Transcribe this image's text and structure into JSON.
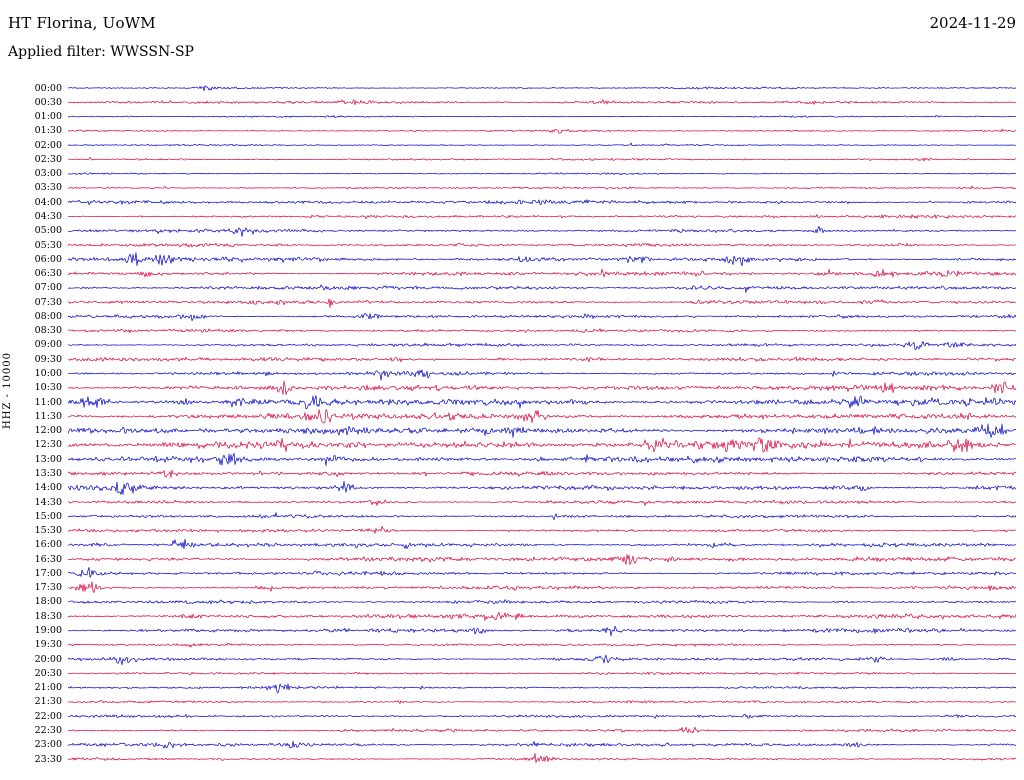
{
  "header": {
    "station": "HT Florina, UoWM",
    "date": "2024-11-29",
    "filter_label": "Applied filter: WWSSN-SP"
  },
  "axis": {
    "left_label": "HHZ - 10000"
  },
  "colors": {
    "blue": "#0000c8",
    "red": "#d8003c",
    "background": "#ffffff",
    "text": "#000000"
  },
  "chart_data": {
    "type": "line",
    "subtype": "helicorder-seismogram",
    "title": "HT Florina, UoWM",
    "date": "2024-11-29",
    "filter": "WWSSN-SP",
    "channel": "HHZ",
    "gain_scale": 10000,
    "minutes_per_row": 30,
    "row_color_rule": "hour lines blue, half-hour lines red, alternating",
    "rows": [
      {
        "t": "00:00",
        "color": "blue",
        "amp": 0.45,
        "bursts": [
          [
            0.145,
            3.2
          ]
        ]
      },
      {
        "t": "00:30",
        "color": "red",
        "amp": 0.7,
        "bursts": [
          [
            0.3,
            1.6
          ],
          [
            0.56,
            1.2
          ]
        ]
      },
      {
        "t": "01:00",
        "color": "blue",
        "amp": 0.4,
        "bursts": []
      },
      {
        "t": "01:30",
        "color": "red",
        "amp": 0.45,
        "bursts": [
          [
            0.515,
            2.2
          ]
        ]
      },
      {
        "t": "02:00",
        "color": "blue",
        "amp": 0.4,
        "bursts": []
      },
      {
        "t": "02:30",
        "color": "red",
        "amp": 0.5,
        "bursts": [
          [
            0.21,
            1.4
          ],
          [
            0.9,
            1.8
          ]
        ]
      },
      {
        "t": "03:00",
        "color": "blue",
        "amp": 0.4,
        "bursts": []
      },
      {
        "t": "03:30",
        "color": "red",
        "amp": 0.5,
        "bursts": [
          [
            0.19,
            1.2
          ]
        ]
      },
      {
        "t": "04:00",
        "color": "blue",
        "amp": 0.95,
        "bursts": []
      },
      {
        "t": "04:30",
        "color": "red",
        "amp": 0.7,
        "bursts": [
          [
            0.26,
            1.2
          ],
          [
            0.74,
            1.0
          ]
        ]
      },
      {
        "t": "05:00",
        "color": "blue",
        "amp": 0.8,
        "bursts": [
          [
            0.185,
            2.2
          ],
          [
            0.79,
            1.6
          ]
        ]
      },
      {
        "t": "05:30",
        "color": "red",
        "amp": 0.8,
        "bursts": [
          [
            0.88,
            1.6
          ]
        ]
      },
      {
        "t": "06:00",
        "color": "blue",
        "amp": 1.1,
        "bursts": [
          [
            0.07,
            2.0
          ],
          [
            0.1,
            2.0
          ],
          [
            0.48,
            2.2
          ],
          [
            0.6,
            2.2
          ],
          [
            0.71,
            2.6
          ]
        ]
      },
      {
        "t": "06:30",
        "color": "red",
        "amp": 1.1,
        "bursts": [
          [
            0.085,
            2.2
          ],
          [
            0.8,
            2.6
          ],
          [
            0.86,
            2.2
          ],
          [
            0.93,
            1.6
          ]
        ]
      },
      {
        "t": "07:00",
        "color": "blue",
        "amp": 0.9,
        "bursts": [
          [
            0.665,
            2.6
          ]
        ]
      },
      {
        "t": "07:30",
        "color": "red",
        "amp": 0.9,
        "bursts": [
          [
            0.665,
            2.2
          ],
          [
            0.85,
            2.2
          ]
        ]
      },
      {
        "t": "08:00",
        "color": "blue",
        "amp": 0.9,
        "bursts": [
          [
            0.135,
            3.2
          ],
          [
            0.32,
            2.2
          ]
        ]
      },
      {
        "t": "08:30",
        "color": "red",
        "amp": 0.8,
        "bursts": [
          [
            0.55,
            1.2
          ]
        ]
      },
      {
        "t": "09:00",
        "color": "blue",
        "amp": 0.8,
        "bursts": [
          [
            0.895,
            2.6
          ],
          [
            0.94,
            1.6
          ]
        ]
      },
      {
        "t": "09:30",
        "color": "red",
        "amp": 1.0,
        "bursts": [
          [
            0.35,
            1.6
          ],
          [
            0.45,
            1.6
          ],
          [
            0.55,
            1.2
          ]
        ]
      },
      {
        "t": "10:00",
        "color": "blue",
        "amp": 0.9,
        "bursts": [
          [
            0.33,
            2.6
          ],
          [
            0.37,
            2.2
          ]
        ]
      },
      {
        "t": "10:30",
        "color": "red",
        "amp": 1.3,
        "bursts": [
          [
            0.225,
            2.2
          ],
          [
            0.86,
            1.6
          ],
          [
            0.985,
            3.6
          ]
        ]
      },
      {
        "t": "11:00",
        "color": "blue",
        "amp": 1.8,
        "bursts": [
          [
            0.025,
            2.0
          ],
          [
            0.12,
            2.6
          ],
          [
            0.18,
            2.6
          ],
          [
            0.26,
            2.2
          ],
          [
            0.83,
            2.2
          ]
        ]
      },
      {
        "t": "11:30",
        "color": "red",
        "amp": 1.5,
        "bursts": [
          [
            0.265,
            2.6
          ],
          [
            0.49,
            2.2
          ]
        ]
      },
      {
        "t": "12:00",
        "color": "blue",
        "amp": 1.9,
        "bursts": [
          [
            0.47,
            2.6
          ],
          [
            0.975,
            2.6
          ]
        ]
      },
      {
        "t": "12:30",
        "color": "red",
        "amp": 2.0,
        "bursts": [
          [
            0.62,
            2.6
          ],
          [
            0.735,
            2.6
          ],
          [
            0.945,
            2.2
          ]
        ]
      },
      {
        "t": "13:00",
        "color": "blue",
        "amp": 1.5,
        "bursts": [
          [
            0.17,
            2.2
          ],
          [
            0.275,
            2.6
          ]
        ]
      },
      {
        "t": "13:30",
        "color": "red",
        "amp": 1.0,
        "bursts": [
          [
            0.105,
            3.6
          ],
          [
            0.28,
            2.2
          ]
        ]
      },
      {
        "t": "14:00",
        "color": "blue",
        "amp": 1.2,
        "bursts": [
          [
            0.06,
            2.6
          ],
          [
            0.29,
            2.6
          ],
          [
            0.81,
            2.2
          ],
          [
            0.835,
            2.2
          ]
        ]
      },
      {
        "t": "14:30",
        "color": "red",
        "amp": 0.8,
        "bursts": [
          [
            0.325,
            2.6
          ]
        ]
      },
      {
        "t": "15:00",
        "color": "blue",
        "amp": 0.8,
        "bursts": []
      },
      {
        "t": "15:30",
        "color": "red",
        "amp": 0.8,
        "bursts": [
          [
            0.33,
            2.6
          ]
        ]
      },
      {
        "t": "16:00",
        "color": "blue",
        "amp": 1.0,
        "bursts": [
          [
            0.03,
            2.2
          ],
          [
            0.12,
            2.6
          ],
          [
            0.685,
            2.2
          ]
        ]
      },
      {
        "t": "16:30",
        "color": "red",
        "amp": 1.2,
        "bursts": [
          [
            0.59,
            2.2
          ],
          [
            0.7,
            2.2
          ]
        ]
      },
      {
        "t": "17:00",
        "color": "blue",
        "amp": 0.9,
        "bursts": [
          [
            0.02,
            4.0
          ]
        ]
      },
      {
        "t": "17:30",
        "color": "red",
        "amp": 0.9,
        "bursts": [
          [
            0.02,
            3.2
          ],
          [
            0.21,
            2.2
          ]
        ]
      },
      {
        "t": "18:00",
        "color": "blue",
        "amp": 0.8,
        "bursts": [
          [
            0.465,
            2.2
          ],
          [
            0.82,
            2.2
          ]
        ]
      },
      {
        "t": "18:30",
        "color": "red",
        "amp": 1.1,
        "bursts": [
          [
            0.13,
            1.6
          ],
          [
            0.45,
            1.6
          ]
        ]
      },
      {
        "t": "19:00",
        "color": "blue",
        "amp": 1.0,
        "bursts": [
          [
            0.43,
            2.2
          ],
          [
            0.52,
            2.2
          ],
          [
            0.575,
            2.6
          ]
        ]
      },
      {
        "t": "19:30",
        "color": "red",
        "amp": 0.6,
        "bursts": []
      },
      {
        "t": "20:00",
        "color": "blue",
        "amp": 0.8,
        "bursts": [
          [
            0.06,
            2.6
          ],
          [
            0.565,
            2.2
          ],
          [
            0.855,
            2.2
          ],
          [
            0.93,
            2.6
          ]
        ]
      },
      {
        "t": "20:30",
        "color": "red",
        "amp": 0.6,
        "bursts": []
      },
      {
        "t": "21:00",
        "color": "blue",
        "amp": 0.6,
        "bursts": [
          [
            0.225,
            3.0
          ]
        ]
      },
      {
        "t": "21:30",
        "color": "red",
        "amp": 0.6,
        "bursts": []
      },
      {
        "t": "22:00",
        "color": "blue",
        "amp": 0.7,
        "bursts": [
          [
            0.72,
            2.6
          ],
          [
            0.935,
            2.2
          ]
        ]
      },
      {
        "t": "22:30",
        "color": "red",
        "amp": 0.7,
        "bursts": [
          [
            0.655,
            3.6
          ]
        ]
      },
      {
        "t": "23:00",
        "color": "blue",
        "amp": 0.8,
        "bursts": [
          [
            0.105,
            2.2
          ],
          [
            0.175,
            2.2
          ],
          [
            0.24,
            2.6
          ],
          [
            0.83,
            2.2
          ]
        ]
      },
      {
        "t": "23:30",
        "color": "red",
        "amp": 0.6,
        "bursts": [
          [
            0.5,
            2.2
          ]
        ]
      }
    ]
  }
}
